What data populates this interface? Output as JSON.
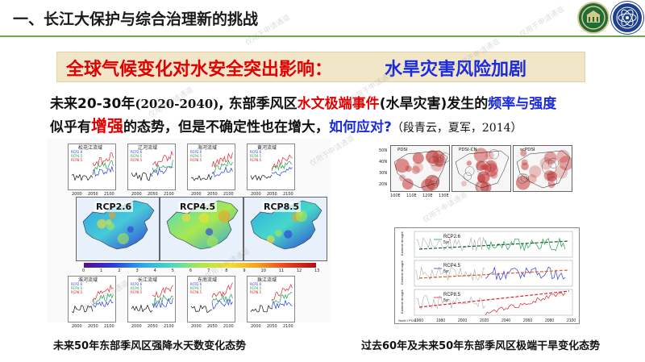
{
  "header": {
    "title": "一、长江大保护与综合治理新的挑战",
    "logo_left": "",
    "logo_right": ""
  },
  "banner": {
    "red_text": "全球气候变化对水安全突出影响：",
    "blue_text": "水旱灾害风险加剧"
  },
  "description": {
    "p1": "未来20-30年",
    "p2": "(2020-2040)",
    "p3": ", 东部季风区",
    "p4": "水文极端事件",
    "p5": "(水旱灾害)发生的",
    "p6": "频率与强度",
    "p7": "似乎有",
    "p8": "增强",
    "p9": "的态势，但是不确定性也在增大，",
    "p10": "如何应对?",
    "p11": "（段青云，夏军，2014）"
  },
  "left_figure": {
    "top_panels": [
      "松花江流域",
      "辽河流域",
      "海河流域",
      "黄河流域"
    ],
    "bottom_panels": [
      "淮河流域",
      "长江流域",
      "东南流域",
      "珠江流域"
    ],
    "legend": [
      "RCP2.6",
      "RCP4.5",
      "RCP8.5"
    ],
    "ylabel": "暴雨天数",
    "xlabel": "年份",
    "x_ticks": [
      "2000",
      "2050",
      "2100"
    ],
    "maps": [
      "RCP2.6",
      "RCP4.5",
      "RCP8.5"
    ],
    "colorbar_ticks": [
      "0",
      "1",
      "2",
      "3",
      "4",
      "5",
      "6",
      "7",
      "8",
      "9",
      "10",
      "11",
      "12",
      "13"
    ],
    "colors": {
      "historical": "#111111",
      "rcp26": "#2a3be0",
      "rcp45": "#1aa050",
      "rcp85": "#e0202a"
    },
    "caption": "未来50年东部季风区强降水天数变化态势"
  },
  "right_figure": {
    "pdsi_panels": [
      "PDSI",
      "PDSI-CN",
      "scPDSI"
    ],
    "lat_ticks": [
      "50N",
      "40N",
      "30N",
      "20N"
    ],
    "lon_ticks": [
      "100E",
      "110E",
      "120E",
      "130E"
    ],
    "series_panels": [
      {
        "name": "RCP2.6",
        "color": "#1aa050"
      },
      {
        "name": "RCP4.5",
        "color": "#2a3be0"
      },
      {
        "name": "RCP8.5",
        "color": "#e0202a"
      }
    ],
    "series_legend_suffix": "5yr",
    "ylabel": "Extreme drought",
    "xlabel": "North \\ PDSI",
    "x_ticks": [
      "1960",
      "1980",
      "2000",
      "2020",
      "2040",
      "2060",
      "2080",
      "2100"
    ],
    "caption": "过去60年及未来50年东部季风区极端干旱变化态势"
  },
  "watermark": "仅用于申请通道"
}
